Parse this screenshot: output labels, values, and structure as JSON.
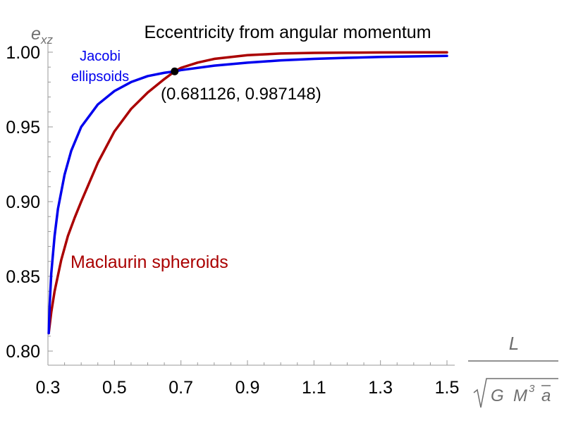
{
  "chart_data": {
    "type": "line",
    "title": "Eccentricity from angular momentum",
    "ylabel": {
      "base": "e",
      "sub": "xz"
    },
    "xlabel": {
      "numerator": "L",
      "denominator": [
        "G",
        "M",
        "3",
        "a"
      ]
    },
    "xlim": [
      0.3,
      1.5
    ],
    "ylim": [
      0.8,
      1.0
    ],
    "xticks": [
      "0.3",
      "0.5",
      "0.7",
      "0.9",
      "1.1",
      "1.3",
      "1.5"
    ],
    "xtick_values": [
      0.3,
      0.5,
      0.7,
      0.9,
      1.1,
      1.3,
      1.5
    ],
    "yticks": [
      "0.80",
      "0.85",
      "0.90",
      "0.95",
      "1.00"
    ],
    "ytick_values": [
      0.8,
      0.85,
      0.9,
      0.95,
      1.0
    ],
    "series": [
      {
        "name": "Jacobi ellipsoids",
        "label_lines": [
          "Jacobi",
          "ellipsoids"
        ],
        "color": "#0000ee",
        "x": [
          0.3024,
          0.305,
          0.31,
          0.32,
          0.33,
          0.35,
          0.37,
          0.4,
          0.45,
          0.5,
          0.55,
          0.6,
          0.65,
          0.681126,
          0.7,
          0.8,
          0.9,
          1.0,
          1.1,
          1.2,
          1.3,
          1.4,
          1.5
        ],
        "y": [
          0.812,
          0.83,
          0.852,
          0.877,
          0.895,
          0.918,
          0.934,
          0.95,
          0.965,
          0.974,
          0.98,
          0.984,
          0.9862,
          0.987148,
          0.988,
          0.991,
          0.993,
          0.9945,
          0.9955,
          0.9962,
          0.9968,
          0.9972,
          0.9975
        ]
      },
      {
        "name": "Maclaurin spheroids",
        "label_lines": [
          "Maclaurin spheroids"
        ],
        "color": "#aa0000",
        "x": [
          0.3024,
          0.31,
          0.32,
          0.34,
          0.36,
          0.38,
          0.4,
          0.45,
          0.5,
          0.55,
          0.6,
          0.65,
          0.681126,
          0.7,
          0.75,
          0.8,
          0.9,
          1.0,
          1.1,
          1.2,
          1.3,
          1.4,
          1.5
        ],
        "y": [
          0.812,
          0.826,
          0.84,
          0.861,
          0.877,
          0.889,
          0.9,
          0.926,
          0.947,
          0.962,
          0.973,
          0.982,
          0.987148,
          0.9895,
          0.993,
          0.9955,
          0.998,
          0.9991,
          0.9995,
          0.9997,
          0.9998,
          0.9999,
          0.9999
        ]
      }
    ],
    "marker": {
      "x": 0.681126,
      "y": 0.987148,
      "label": "(0.681126, 0.987148)"
    }
  }
}
